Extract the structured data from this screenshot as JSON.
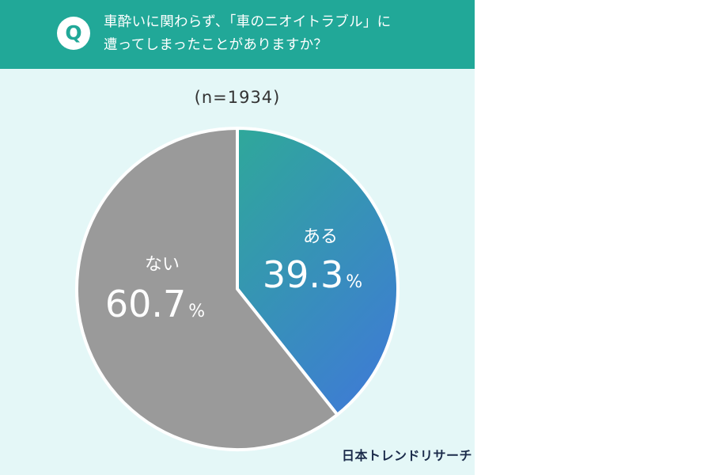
{
  "question": {
    "badge": "Q",
    "line1": "車酔いに関わらず、「車のニオイトラブル」に",
    "line2": "遭ってしまったことがありますか？"
  },
  "sample_size": "(n=1934)",
  "chart_data": {
    "type": "pie",
    "categories": [
      "ある",
      "ない"
    ],
    "values": [
      39.3,
      60.7
    ],
    "value_labels": [
      "39.3",
      "60.7"
    ],
    "unit": "%",
    "colors": [
      "#3a86c8",
      "#9a9a9a"
    ],
    "gradient": [
      "#2fa89a",
      "#3d7fd0"
    ],
    "start_angle": "12 o'clock, clockwise",
    "label_color": "#ffffff"
  },
  "credit": "日本トレンドリサーチ"
}
